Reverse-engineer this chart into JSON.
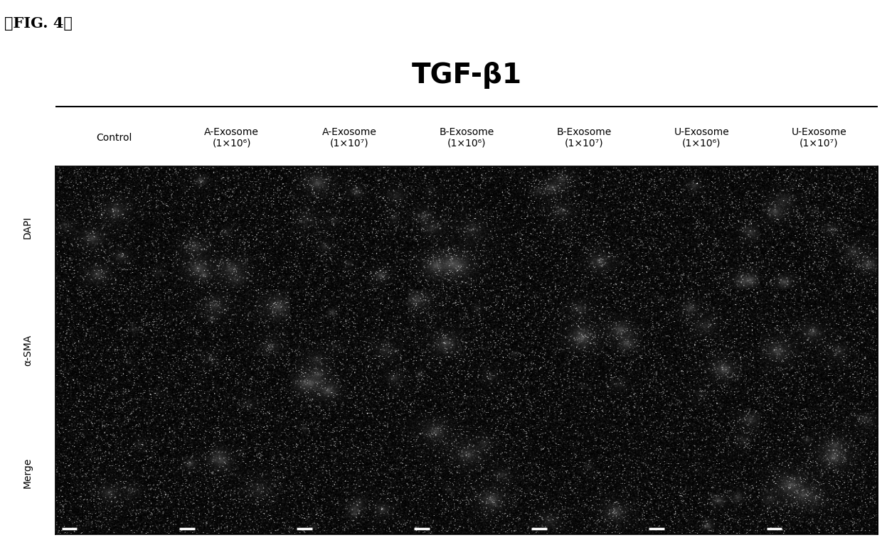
{
  "fig_label": "【FIG. 4】",
  "title": "TGF-β1",
  "col_labels": [
    "Control",
    "A-Exosome\n(1×10⁶)",
    "A-Exosome\n(1×10⁷)",
    "B-Exosome\n(1×10⁶)",
    "B-Exosome\n(1×10⁷)",
    "U-Exosome\n(1×10⁶)",
    "U-Exosome\n(1×10⁷)"
  ],
  "row_labels": [
    "DAPI",
    "α-SMA",
    "Merge"
  ],
  "n_cols": 7,
  "n_rows": 3,
  "bg_color": "#ffffff",
  "title_fontsize": 28,
  "col_label_fontsize": 10,
  "row_label_fontsize": 10,
  "fig_label_fontsize": 15,
  "scalebar_color": "#ffffff",
  "separator_after_cols": [
    1,
    3
  ],
  "white_sep_color": "#ffffff",
  "noise_base": 0.04,
  "noise_scale": 0.12,
  "dot_density": 0.05,
  "dot_max_brightness": 0.85
}
